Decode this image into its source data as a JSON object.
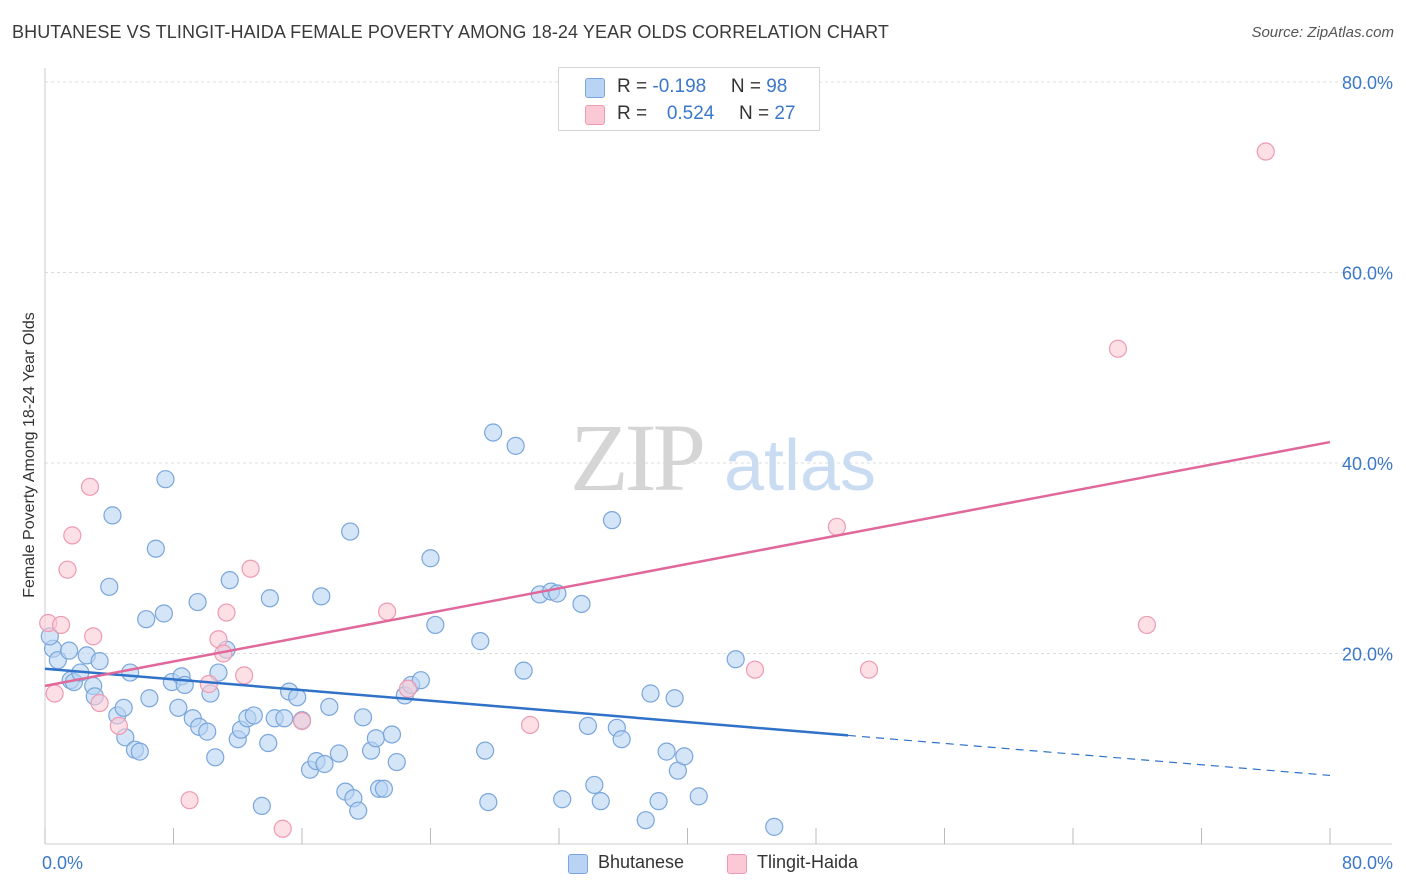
{
  "header": {
    "title": "BHUTANESE VS TLINGIT-HAIDA FEMALE POVERTY AMONG 18-24 YEAR OLDS CORRELATION CHART",
    "source": "Source: ZipAtlas.com"
  },
  "watermark": {
    "zip": "ZIP",
    "atlas": "atlas"
  },
  "legend_top": [
    {
      "r_label": "R = ",
      "r_value": "-0.198",
      "n_label": "N = ",
      "n_value": "98"
    },
    {
      "r_label": "R = ",
      "r_value": "0.524",
      "n_label": "N = ",
      "n_value": "27"
    }
  ],
  "colors": {
    "bhutanese_fill": "#b8d3f4",
    "bhutanese_stroke": "#7aa6dc",
    "bhutanese_line": "#2f72c8",
    "tlingit_fill": "#fbc9d6",
    "tlingit_stroke": "#ee9ab2",
    "tlingit_line": "#e0689a",
    "tick_text": "#3b78c9",
    "grid": "#dcdcdc"
  },
  "chart_data": {
    "type": "scatter",
    "title": "BHUTANESE VS TLINGIT-HAIDA FEMALE POVERTY AMONG 18-24 YEAR OLDS CORRELATION CHART",
    "xlabel": "",
    "ylabel": "Female Poverty Among 18-24 Year Olds",
    "xlim": [
      0,
      80
    ],
    "ylim": [
      0,
      80
    ],
    "x_tick_labels": [
      "0.0%",
      "80.0%"
    ],
    "y_ticks": [
      20,
      40,
      60,
      80
    ],
    "y_tick_labels": [
      "20.0%",
      "40.0%",
      "60.0%",
      "80.0%"
    ],
    "grid": true,
    "legend_position": "bottom",
    "series": [
      {
        "name": "Bhutanese",
        "trend": {
          "x": [
            0,
            50
          ],
          "y": [
            18.4,
            11.4
          ],
          "dashed_to": [
            80,
            7.2
          ]
        },
        "points": [
          [
            0.5,
            20.5
          ],
          [
            0.8,
            19.3
          ],
          [
            1.5,
            20.3
          ],
          [
            1.6,
            17.2
          ],
          [
            1.8,
            17.0
          ],
          [
            2.2,
            18.0
          ],
          [
            2.6,
            19.8
          ],
          [
            3.0,
            16.6
          ],
          [
            3.1,
            15.5
          ],
          [
            3.4,
            19.2
          ],
          [
            4.2,
            34.5
          ],
          [
            4.5,
            13.5
          ],
          [
            4.9,
            14.3
          ],
          [
            4.0,
            27.0
          ],
          [
            5.0,
            11.2
          ],
          [
            5.3,
            18.0
          ],
          [
            5.6,
            9.9
          ],
          [
            5.9,
            9.7
          ],
          [
            6.3,
            23.6
          ],
          [
            6.5,
            15.3
          ],
          [
            6.9,
            31.0
          ],
          [
            7.4,
            24.2
          ],
          [
            7.5,
            38.3
          ],
          [
            7.9,
            17.0
          ],
          [
            8.3,
            14.3
          ],
          [
            8.5,
            17.6
          ],
          [
            8.7,
            16.7
          ],
          [
            9.2,
            13.2
          ],
          [
            9.5,
            25.4
          ],
          [
            9.6,
            12.3
          ],
          [
            10.1,
            11.8
          ],
          [
            10.3,
            15.8
          ],
          [
            10.6,
            9.1
          ],
          [
            10.8,
            18.0
          ],
          [
            11.3,
            20.4
          ],
          [
            11.5,
            27.7
          ],
          [
            12.0,
            11.0
          ],
          [
            12.2,
            12.0
          ],
          [
            12.6,
            13.2
          ],
          [
            13.0,
            13.5
          ],
          [
            13.5,
            4.0
          ],
          [
            13.9,
            10.6
          ],
          [
            14.0,
            25.8
          ],
          [
            14.3,
            13.2
          ],
          [
            14.9,
            13.2
          ],
          [
            15.2,
            16.0
          ],
          [
            15.7,
            15.4
          ],
          [
            16.0,
            13.0
          ],
          [
            16.5,
            7.8
          ],
          [
            16.9,
            8.7
          ],
          [
            17.2,
            26.0
          ],
          [
            17.4,
            8.4
          ],
          [
            17.7,
            14.4
          ],
          [
            18.3,
            9.5
          ],
          [
            18.7,
            5.5
          ],
          [
            19.0,
            32.8
          ],
          [
            19.2,
            4.8
          ],
          [
            19.5,
            3.5
          ],
          [
            19.8,
            13.3
          ],
          [
            20.3,
            9.8
          ],
          [
            20.6,
            11.1
          ],
          [
            20.8,
            5.8
          ],
          [
            21.1,
            5.8
          ],
          [
            21.6,
            11.5
          ],
          [
            21.9,
            8.6
          ],
          [
            22.4,
            15.6
          ],
          [
            22.8,
            16.7
          ],
          [
            23.4,
            17.2
          ],
          [
            24.0,
            30.0
          ],
          [
            24.3,
            23.0
          ],
          [
            27.1,
            21.3
          ],
          [
            27.4,
            9.8
          ],
          [
            27.6,
            4.4
          ],
          [
            27.9,
            43.2
          ],
          [
            29.3,
            41.8
          ],
          [
            29.8,
            18.2
          ],
          [
            30.8,
            26.2
          ],
          [
            31.5,
            26.5
          ],
          [
            31.9,
            26.3
          ],
          [
            32.2,
            4.7
          ],
          [
            33.4,
            25.2
          ],
          [
            33.8,
            12.4
          ],
          [
            34.2,
            6.2
          ],
          [
            34.6,
            4.5
          ],
          [
            35.3,
            34.0
          ],
          [
            35.6,
            12.2
          ],
          [
            35.9,
            11.0
          ],
          [
            37.4,
            2.5
          ],
          [
            37.7,
            15.8
          ],
          [
            38.2,
            4.5
          ],
          [
            38.7,
            9.7
          ],
          [
            39.2,
            15.3
          ],
          [
            39.4,
            7.7
          ],
          [
            39.8,
            9.2
          ],
          [
            40.7,
            5.0
          ],
          [
            43.0,
            19.4
          ],
          [
            45.4,
            1.8
          ],
          [
            0.3,
            21.8
          ]
        ]
      },
      {
        "name": "Tlingit-Haida",
        "trend": {
          "x": [
            0,
            80
          ],
          "y": [
            16.6,
            42.2
          ]
        },
        "points": [
          [
            0.2,
            23.2
          ],
          [
            0.6,
            15.8
          ],
          [
            1.0,
            23.0
          ],
          [
            1.4,
            28.8
          ],
          [
            1.7,
            32.4
          ],
          [
            2.8,
            37.5
          ],
          [
            3.0,
            21.8
          ],
          [
            3.4,
            14.8
          ],
          [
            4.6,
            12.4
          ],
          [
            9.0,
            4.6
          ],
          [
            10.2,
            16.8
          ],
          [
            10.8,
            21.5
          ],
          [
            11.1,
            20.0
          ],
          [
            11.3,
            24.3
          ],
          [
            12.4,
            17.7
          ],
          [
            12.8,
            28.9
          ],
          [
            14.8,
            1.6
          ],
          [
            16.0,
            12.9
          ],
          [
            21.3,
            24.4
          ],
          [
            22.6,
            16.3
          ],
          [
            30.2,
            12.5
          ],
          [
            44.2,
            18.3
          ],
          [
            49.3,
            33.3
          ],
          [
            51.3,
            18.3
          ],
          [
            66.8,
            52.0
          ],
          [
            68.6,
            23.0
          ],
          [
            76.0,
            72.7
          ]
        ]
      }
    ]
  },
  "legend_bottom": [
    {
      "label": "Bhutanese"
    },
    {
      "label": "Tlingit-Haida"
    }
  ]
}
